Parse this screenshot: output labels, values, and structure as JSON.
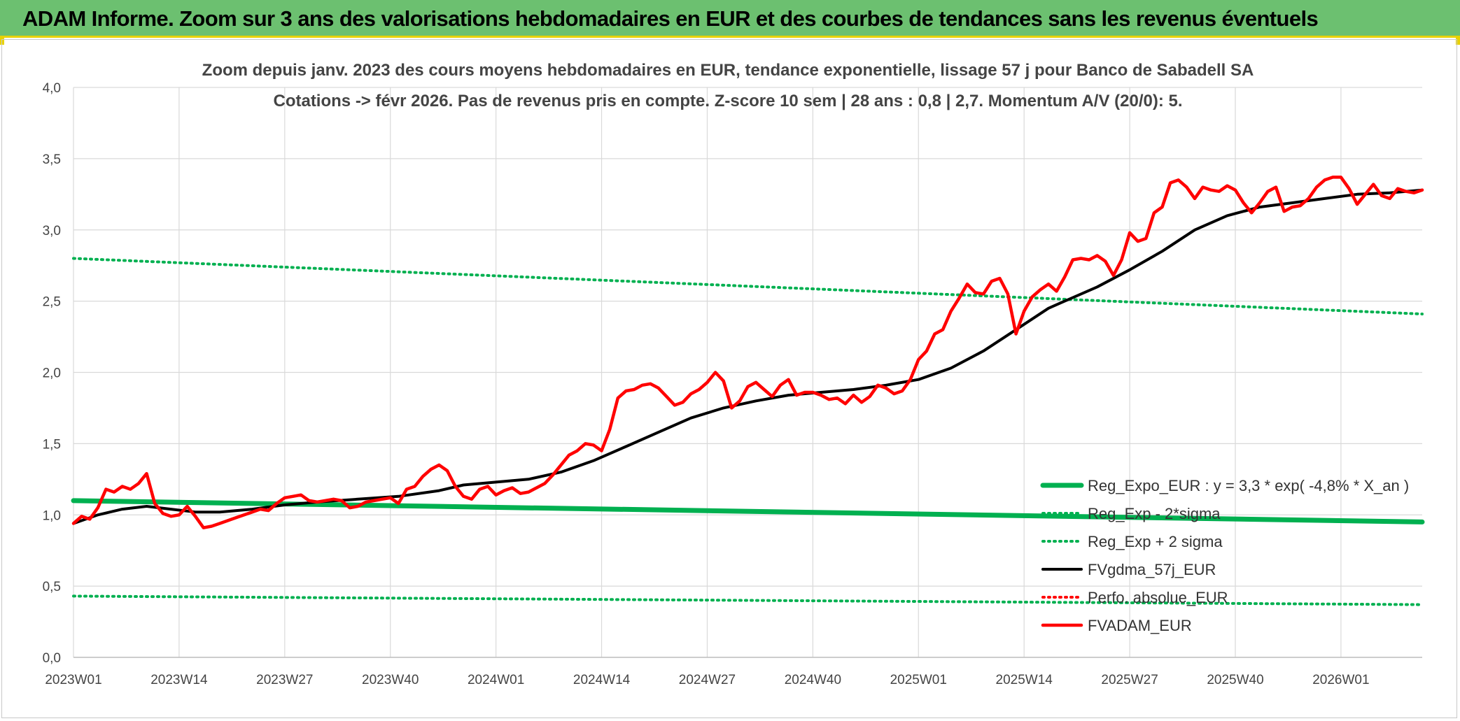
{
  "banner": {
    "title": "ADAM Informe. Zoom sur 3 ans des valorisations hebdomadaires en EUR et des courbes de tendances sans les revenus éventuels"
  },
  "chart_data": {
    "type": "line",
    "title": "Zoom depuis janv. 2023 des cours moyens hebdomadaires en EUR, tendance exponentielle, lissage 57 j pour Banco de Sabadell SA",
    "subtitle": "Cotations -> févr 2026. Pas de revenus pris en compte. Z-score 10 sem | 28 ans : 0,8 | 2,7. Momentum A/V (20/0): 5.",
    "xlabel": "",
    "ylabel": "",
    "ylim": [
      0,
      4
    ],
    "yticks": [
      "0,0",
      "0,5",
      "1,0",
      "1,5",
      "2,0",
      "2,5",
      "3,0",
      "3,5",
      "4,0"
    ],
    "xticks": [
      "2023W01",
      "2023W14",
      "2023W27",
      "2023W40",
      "2024W01",
      "2024W14",
      "2024W27",
      "2024W40",
      "2025W01",
      "2025W14",
      "2025W27",
      "2025W40",
      "2026W01"
    ],
    "weeks_total": 166,
    "grid": true,
    "legend_position": "bottom-right",
    "series": [
      {
        "name": "Reg_Expo_EUR : y = 3,3 * exp( -4,8% *  X_an )",
        "color": "#00b050",
        "style": "solid-thick",
        "x": [
          0,
          166
        ],
        "values": [
          1.1,
          0.95
        ]
      },
      {
        "name": "Reg_Exp - 2*sigma",
        "color": "#00b050",
        "style": "dotted",
        "x": [
          0,
          166
        ],
        "values": [
          0.43,
          0.37
        ]
      },
      {
        "name": "Reg_Exp + 2 sigma",
        "color": "#00b050",
        "style": "dotted",
        "x": [
          0,
          166
        ],
        "values": [
          2.8,
          2.41
        ]
      },
      {
        "name": "FVgdma_57j_EUR",
        "color": "#000000",
        "style": "solid",
        "x": [
          0,
          3,
          6,
          9,
          12,
          15,
          18,
          22,
          26,
          30,
          35,
          40,
          45,
          48,
          52,
          56,
          60,
          64,
          68,
          72,
          76,
          80,
          84,
          88,
          92,
          96,
          100,
          104,
          108,
          112,
          116,
          120,
          122,
          126,
          130,
          134,
          138,
          142,
          146,
          150,
          154,
          158,
          162,
          166
        ],
        "values": [
          0.94,
          1.0,
          1.04,
          1.06,
          1.04,
          1.02,
          1.02,
          1.04,
          1.07,
          1.09,
          1.11,
          1.13,
          1.17,
          1.21,
          1.23,
          1.25,
          1.3,
          1.38,
          1.48,
          1.58,
          1.68,
          1.75,
          1.8,
          1.84,
          1.86,
          1.88,
          1.91,
          1.95,
          2.03,
          2.15,
          2.3,
          2.45,
          2.5,
          2.6,
          2.72,
          2.85,
          3.0,
          3.1,
          3.16,
          3.19,
          3.22,
          3.25,
          3.26,
          3.28
        ]
      },
      {
        "name": "Perfo. absolue_EUR",
        "color": "#ff0000",
        "style": "dotted",
        "x": [],
        "values": []
      },
      {
        "name": "FVADAM_EUR",
        "color": "#ff0000",
        "style": "solid-thick",
        "x": [
          0,
          1,
          2,
          3,
          4,
          5,
          6,
          7,
          8,
          9,
          10,
          11,
          12,
          13,
          14,
          15,
          16,
          17,
          18,
          19,
          20,
          21,
          22,
          23,
          24,
          25,
          26,
          27,
          28,
          29,
          30,
          31,
          32,
          33,
          34,
          35,
          36,
          37,
          38,
          39,
          40,
          41,
          42,
          43,
          44,
          45,
          46,
          47,
          48,
          49,
          50,
          51,
          52,
          53,
          54,
          55,
          56,
          57,
          58,
          59,
          60,
          61,
          62,
          63,
          64,
          65,
          66,
          67,
          68,
          69,
          70,
          71,
          72,
          73,
          74,
          75,
          76,
          77,
          78,
          79,
          80,
          81,
          82,
          83,
          84,
          85,
          86,
          87,
          88,
          89,
          90,
          91,
          92,
          93,
          94,
          95,
          96,
          97,
          98,
          99,
          100,
          101,
          102,
          103,
          104,
          105,
          106,
          107,
          108,
          109,
          110,
          111,
          112,
          113,
          114,
          115,
          116,
          117,
          118,
          119,
          120,
          121,
          122,
          123,
          124,
          125,
          126,
          127,
          128,
          129,
          130,
          131,
          132,
          133,
          134,
          135,
          136,
          137,
          138,
          139,
          140,
          141,
          142,
          143,
          144,
          145,
          146,
          147,
          148,
          149,
          150,
          151,
          152,
          153,
          154,
          155,
          156,
          157,
          158,
          159,
          160,
          161,
          162,
          163,
          164,
          165,
          166
        ],
        "values": [
          0.94,
          0.99,
          0.97,
          1.05,
          1.18,
          1.16,
          1.2,
          1.18,
          1.22,
          1.29,
          1.08,
          1.01,
          0.99,
          1.0,
          1.06,
          0.99,
          0.91,
          0.92,
          0.94,
          0.96,
          0.98,
          1.0,
          1.02,
          1.04,
          1.03,
          1.08,
          1.12,
          1.13,
          1.14,
          1.1,
          1.09,
          1.1,
          1.11,
          1.1,
          1.05,
          1.06,
          1.09,
          1.1,
          1.11,
          1.12,
          1.08,
          1.18,
          1.2,
          1.27,
          1.32,
          1.35,
          1.31,
          1.2,
          1.13,
          1.11,
          1.18,
          1.2,
          1.14,
          1.17,
          1.19,
          1.15,
          1.16,
          1.19,
          1.22,
          1.28,
          1.35,
          1.42,
          1.45,
          1.5,
          1.49,
          1.45,
          1.6,
          1.82,
          1.87,
          1.88,
          1.91,
          1.92,
          1.89,
          1.83,
          1.77,
          1.79,
          1.85,
          1.88,
          1.93,
          2.0,
          1.94,
          1.75,
          1.8,
          1.9,
          1.93,
          1.88,
          1.83,
          1.91,
          1.95,
          1.84,
          1.86,
          1.86,
          1.84,
          1.81,
          1.82,
          1.78,
          1.84,
          1.79,
          1.83,
          1.91,
          1.89,
          1.85,
          1.87,
          1.95,
          2.09,
          2.15,
          2.27,
          2.3,
          2.43,
          2.52,
          2.62,
          2.56,
          2.55,
          2.64,
          2.66,
          2.55,
          2.27,
          2.43,
          2.53,
          2.58,
          2.62,
          2.57,
          2.67,
          2.79,
          2.8,
          2.79,
          2.82,
          2.78,
          2.68,
          2.79,
          2.98,
          2.92,
          2.94,
          3.12,
          3.16,
          3.33,
          3.35,
          3.3,
          3.22,
          3.3,
          3.28,
          3.27,
          3.31,
          3.28,
          3.19,
          3.12,
          3.19,
          3.27,
          3.3,
          3.13,
          3.16,
          3.17,
          3.22,
          3.3,
          3.35,
          3.37,
          3.37,
          3.29,
          3.18,
          3.25,
          3.32,
          3.24,
          3.22,
          3.29,
          3.27,
          3.26,
          3.28
        ]
      }
    ]
  }
}
